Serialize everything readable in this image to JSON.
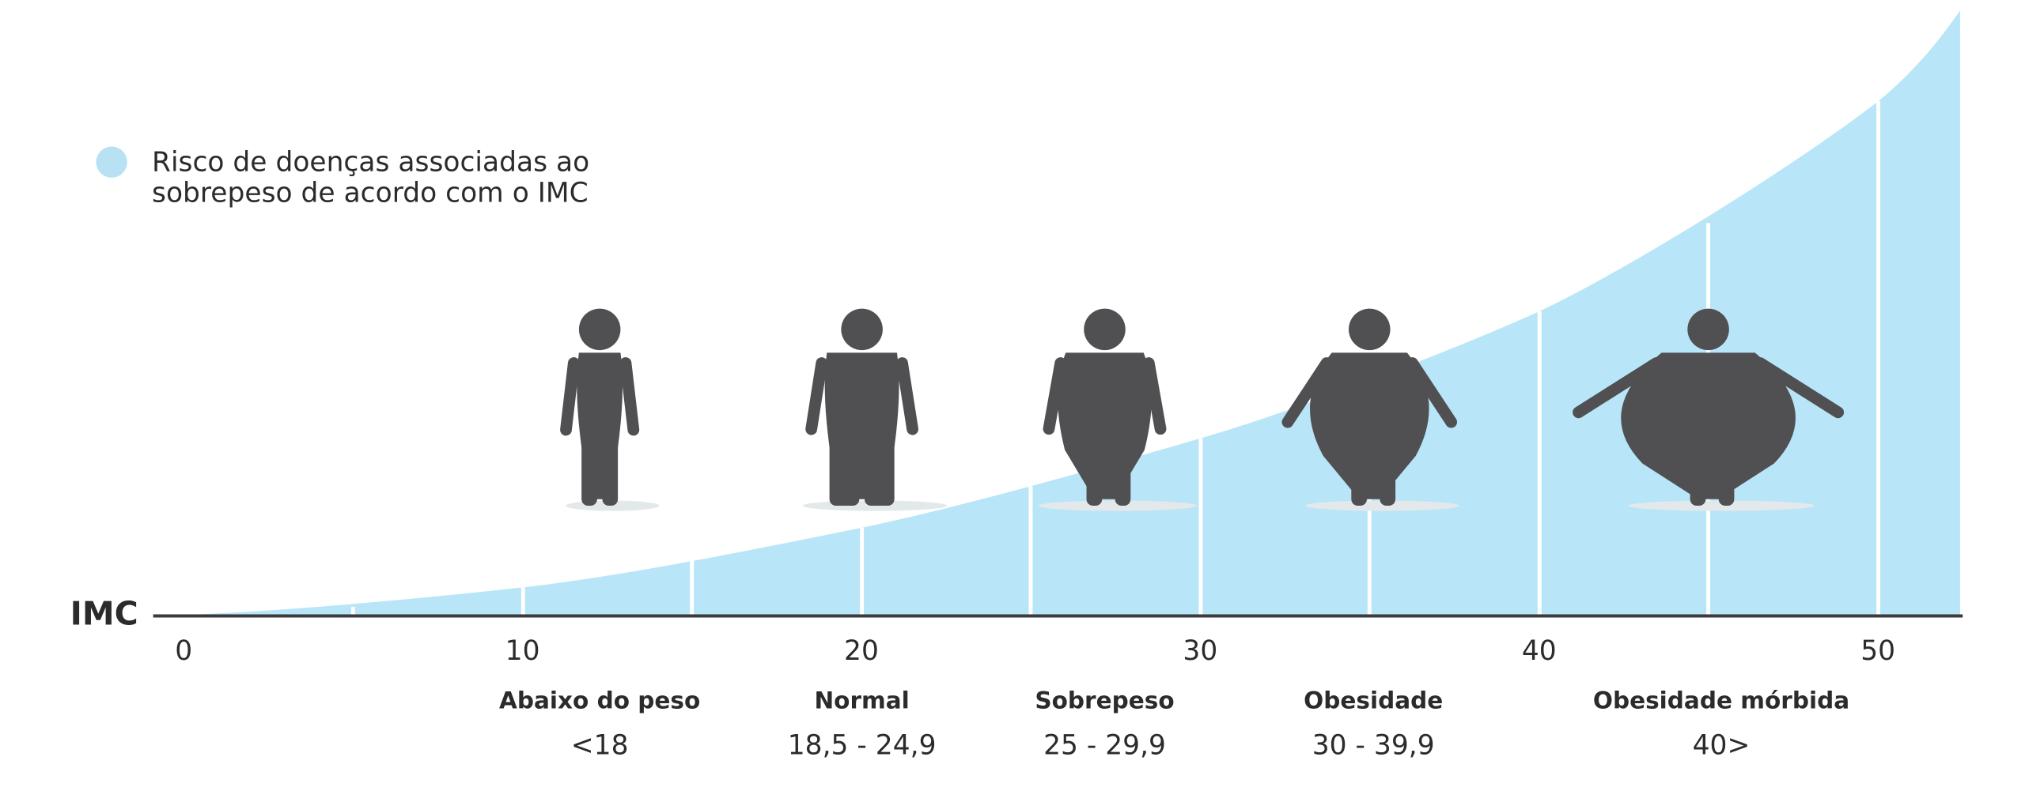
{
  "chart_data": {
    "type": "area",
    "legend": [
      "Risco de doenças associadas ao",
      "sobrepeso de acordo com o IMC"
    ],
    "legend_color": "#b8e2f4",
    "area_color": "#b8e6f8",
    "axis_label": "IMC",
    "xlim": [
      -0.9,
      52.5
    ],
    "xticks": [
      0,
      10,
      20,
      30,
      40,
      50
    ],
    "classes": [
      {
        "name": "Abaixo do peso",
        "range": "<18"
      },
      {
        "name": "Normal",
        "range": "18,5 - 24,9"
      },
      {
        "name": "Sobrepeso",
        "range": "25 - 29,9"
      },
      {
        "name": "Obesidade",
        "range": "30 - 39,9"
      },
      {
        "name": "Obesidade mórbida",
        "range": "40>"
      }
    ]
  }
}
